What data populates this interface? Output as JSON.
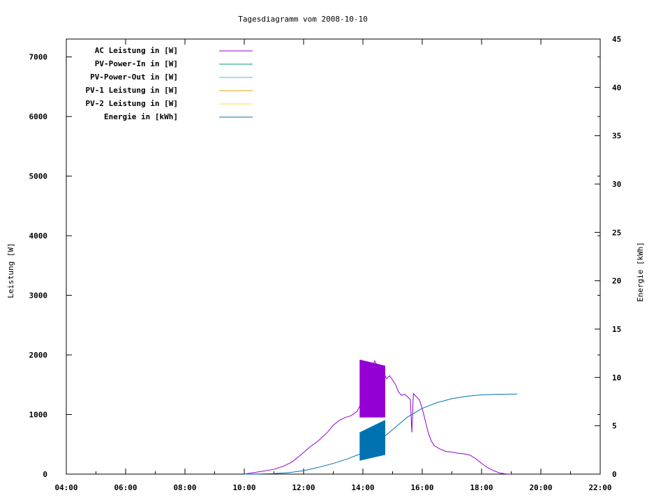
{
  "chart_data": {
    "type": "line",
    "title": "Tagesdiagramm vom 2008-10-10",
    "ylabel": "Leistung [W]",
    "y2label": "Energie [kWh]",
    "x_ticks": [
      "04:00",
      "06:00",
      "08:00",
      "10:00",
      "12:00",
      "14:00",
      "16:00",
      "18:00",
      "20:00",
      "22:00"
    ],
    "xlim_hours": [
      4,
      22
    ],
    "ylim": [
      0,
      7300
    ],
    "y_ticks": [
      0,
      1000,
      2000,
      3000,
      4000,
      5000,
      6000,
      7000
    ],
    "y2lim": [
      0,
      45
    ],
    "y2_ticks": [
      0,
      5,
      10,
      15,
      20,
      25,
      30,
      35,
      40,
      45
    ],
    "grid": false,
    "legend_position": "top-left",
    "legend": [
      {
        "name": "AC Leistung in [W]",
        "color": "#9400d3"
      },
      {
        "name": "PV-Power-In in [W]",
        "color": "#009e73"
      },
      {
        "name": "PV-Power-Out in [W]",
        "color": "#56b4e9"
      },
      {
        "name": "PV-1 Leistung in [W]",
        "color": "#e69f00"
      },
      {
        "name": "PV-2 Leistung in [W]",
        "color": "#f0e442"
      },
      {
        "name": "Energie in [kWh]",
        "color": "#0072b2"
      }
    ],
    "series": [
      {
        "name": "AC Leistung in [W]",
        "axis": "left",
        "x_hours": [
          10.0,
          10.5,
          11.0,
          11.3,
          11.6,
          11.9,
          12.2,
          12.5,
          12.8,
          13.0,
          13.2,
          13.4,
          13.6,
          13.8,
          13.9,
          14.0,
          14.1,
          14.2,
          14.3,
          14.4,
          14.5,
          14.6,
          14.7,
          14.8,
          14.9,
          15.0,
          15.1,
          15.2,
          15.3,
          15.4,
          15.5,
          15.6,
          15.65,
          15.7,
          15.8,
          15.9,
          16.0,
          16.1,
          16.2,
          16.3,
          16.4,
          16.6,
          16.8,
          17.0,
          17.2,
          17.4,
          17.6,
          17.8,
          18.0,
          18.2,
          18.4,
          18.6,
          18.8,
          19.0
        ],
        "values": [
          0,
          40,
          80,
          130,
          200,
          320,
          450,
          560,
          700,
          820,
          900,
          950,
          980,
          1050,
          1150,
          1500,
          1600,
          1700,
          1800,
          1900,
          1800,
          1750,
          1700,
          1600,
          1650,
          1580,
          1500,
          1380,
          1320,
          1340,
          1300,
          1250,
          700,
          1350,
          1300,
          1250,
          1100,
          900,
          700,
          560,
          480,
          420,
          380,
          370,
          350,
          340,
          320,
          260,
          180,
          110,
          60,
          20,
          5,
          0
        ]
      },
      {
        "name": "Energie in [kWh]",
        "axis": "right",
        "x_hours": [
          10.0,
          10.5,
          11.0,
          11.5,
          12.0,
          12.5,
          13.0,
          13.5,
          14.0,
          14.5,
          15.0,
          15.5,
          16.0,
          16.5,
          17.0,
          17.5,
          18.0,
          18.5,
          19.0,
          19.2
        ],
        "values": [
          0.0,
          0.02,
          0.06,
          0.15,
          0.35,
          0.7,
          1.1,
          1.6,
          2.2,
          3.3,
          4.6,
          5.9,
          6.8,
          7.4,
          7.8,
          8.05,
          8.2,
          8.25,
          8.28,
          8.28
        ]
      }
    ],
    "noisy_band": {
      "series": "AC Leistung in [W]",
      "x_hours": [
        13.9,
        14.75
      ],
      "low": 950,
      "high": 1920
    },
    "energy_band": {
      "series": "Energie in [kWh]",
      "x_hours": [
        13.9,
        14.75
      ],
      "low": 1.4,
      "high": 5.6
    }
  }
}
